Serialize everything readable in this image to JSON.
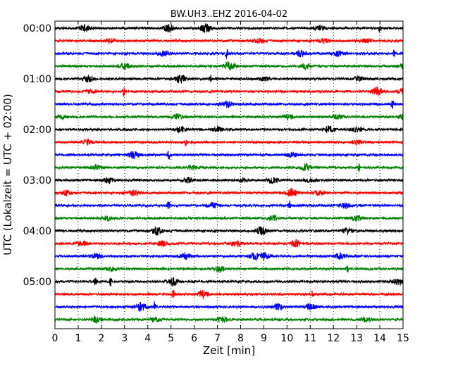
{
  "chart_data": {
    "type": "line",
    "title": "BW.UH3..EHZ 2016-04-02",
    "xlabel": "Zeit  [min]",
    "ylabel": "UTC (Lokalzeit = UTC + 02:00)",
    "xlim": [
      0,
      15
    ],
    "x_ticks": [
      "0",
      "1",
      "2",
      "3",
      "4",
      "5",
      "6",
      "7",
      "8",
      "9",
      "10",
      "11",
      "12",
      "13",
      "14",
      "15"
    ],
    "y_ticks": [
      "00:00",
      "01:00",
      "02:00",
      "03:00",
      "04:00",
      "05:00"
    ],
    "trace_minutes": 15,
    "grid": "vertical dotted lines at each minute",
    "colors": [
      "#000000",
      "#ff0000",
      "#0000ff",
      "#008000"
    ],
    "traces": [
      {
        "start": "00:00",
        "bursts": [
          [
            1.3,
            0.7
          ],
          [
            4.9,
            0.7
          ],
          [
            6.5,
            0.8
          ],
          [
            11.4,
            0.5
          ],
          [
            14.0,
            0.9
          ]
        ]
      },
      {
        "start": "00:15",
        "bursts": [
          [
            2.4,
            0.4
          ],
          [
            8.8,
            0.4
          ],
          [
            11.6,
            0.4
          ],
          [
            13.4,
            0.4
          ]
        ]
      },
      {
        "start": "00:30",
        "bursts": [
          [
            4.7,
            0.5
          ],
          [
            7.4,
            1.0
          ],
          [
            10.6,
            0.6
          ],
          [
            12.2,
            0.5
          ],
          [
            14.6,
            1.0
          ]
        ]
      },
      {
        "start": "00:45",
        "bursts": [
          [
            3.0,
            0.5
          ],
          [
            7.5,
            0.8
          ],
          [
            10.8,
            0.5
          ],
          [
            15.0,
            0.4
          ]
        ]
      },
      {
        "start": "01:00",
        "bursts": [
          [
            1.4,
            0.7
          ],
          [
            5.4,
            0.8
          ],
          [
            6.7,
            0.9
          ],
          [
            9.0,
            0.4
          ],
          [
            13.1,
            0.5
          ]
        ]
      },
      {
        "start": "01:15",
        "bursts": [
          [
            1.5,
            0.3
          ],
          [
            2.95,
            1.0
          ],
          [
            13.9,
            0.8
          ],
          [
            15.0,
            0.5
          ]
        ]
      },
      {
        "start": "01:30",
        "bursts": [
          [
            7.4,
            0.6
          ],
          [
            14.55,
            0.9
          ]
        ]
      },
      {
        "start": "01:45",
        "bursts": [
          [
            0.3,
            0.4
          ],
          [
            5.3,
            0.6
          ],
          [
            10.1,
            0.5
          ],
          [
            12.2,
            0.4
          ],
          [
            15.0,
            0.4
          ]
        ]
      },
      {
        "start": "02:00",
        "bursts": [
          [
            5.4,
            0.5
          ],
          [
            7.0,
            0.5
          ],
          [
            11.8,
            0.6
          ],
          [
            13.0,
            0.5
          ]
        ]
      },
      {
        "start": "02:15",
        "bursts": [
          [
            1.4,
            0.5
          ],
          [
            5.65,
            0.9
          ],
          [
            13.0,
            0.4
          ]
        ]
      },
      {
        "start": "02:30",
        "bursts": [
          [
            3.4,
            0.7
          ],
          [
            4.9,
            1.0
          ],
          [
            10.2,
            0.5
          ]
        ]
      },
      {
        "start": "02:45",
        "bursts": [
          [
            1.8,
            0.4
          ],
          [
            5.9,
            0.4
          ],
          [
            10.8,
            0.6
          ],
          [
            13.1,
            0.9
          ]
        ]
      },
      {
        "start": "03:00",
        "bursts": [
          [
            2.3,
            0.5
          ],
          [
            5.7,
            0.5
          ],
          [
            8.1,
            0.4
          ],
          [
            9.4,
            0.6
          ],
          [
            11.0,
            0.5
          ]
        ]
      },
      {
        "start": "03:15",
        "bursts": [
          [
            0.5,
            0.4
          ],
          [
            3.4,
            0.5
          ],
          [
            10.2,
            0.8
          ],
          [
            11.4,
            0.4
          ]
        ]
      },
      {
        "start": "03:30",
        "bursts": [
          [
            4.9,
            1.0
          ],
          [
            6.8,
            0.5
          ],
          [
            10.1,
            1.0
          ],
          [
            12.5,
            0.5
          ]
        ]
      },
      {
        "start": "03:45",
        "bursts": [
          [
            2.3,
            0.4
          ],
          [
            9.4,
            0.5
          ],
          [
            13.0,
            0.6
          ]
        ]
      },
      {
        "start": "04:00",
        "bursts": [
          [
            4.4,
            0.7
          ],
          [
            8.9,
            0.8
          ],
          [
            12.6,
            0.6
          ]
        ]
      },
      {
        "start": "04:15",
        "bursts": [
          [
            1.2,
            0.4
          ],
          [
            4.6,
            0.5
          ],
          [
            7.8,
            0.6
          ],
          [
            10.4,
            0.6
          ]
        ]
      },
      {
        "start": "04:30",
        "bursts": [
          [
            1.8,
            0.5
          ],
          [
            5.6,
            0.6
          ],
          [
            8.6,
            0.6
          ],
          [
            9.0,
            0.7
          ],
          [
            12.3,
            0.5
          ]
        ]
      },
      {
        "start": "04:45",
        "bursts": [
          [
            2.4,
            0.4
          ],
          [
            7.1,
            0.6
          ],
          [
            12.6,
            0.9
          ]
        ]
      },
      {
        "start": "05:00",
        "bursts": [
          [
            1.75,
            1.0
          ],
          [
            2.4,
            0.9
          ],
          [
            5.1,
            0.8
          ],
          [
            14.8,
            0.6
          ]
        ]
      },
      {
        "start": "05:15",
        "bursts": [
          [
            5.1,
            0.9
          ],
          [
            6.4,
            0.7
          ],
          [
            11.1,
            0.9
          ]
        ]
      },
      {
        "start": "05:30",
        "bursts": [
          [
            3.7,
            0.8
          ],
          [
            4.3,
            1.0
          ],
          [
            9.6,
            0.6
          ],
          [
            11.0,
            0.6
          ]
        ]
      },
      {
        "start": "05:45",
        "bursts": [
          [
            1.8,
            0.5
          ],
          [
            4.3,
            0.4
          ],
          [
            7.2,
            0.5
          ],
          [
            13.4,
            0.4
          ]
        ]
      }
    ]
  }
}
